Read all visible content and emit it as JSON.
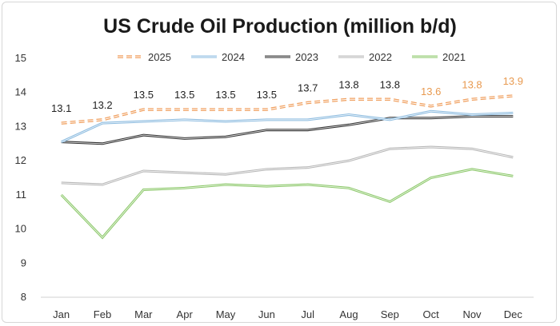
{
  "chart_data": {
    "type": "line",
    "title": "US Crude Oil Production (million b/d)",
    "xlabel": "",
    "ylabel": "",
    "categories": [
      "Jan",
      "Feb",
      "Mar",
      "Apr",
      "May",
      "Jun",
      "Jul",
      "Aug",
      "Sep",
      "Oct",
      "Nov",
      "Dec"
    ],
    "ylim": [
      8,
      15
    ],
    "yticks": [
      8,
      9,
      10,
      11,
      12,
      13,
      14,
      15
    ],
    "grid": false,
    "legend": "top",
    "series": [
      {
        "name": "2025",
        "color": "#f0a060",
        "style": "dashed",
        "values": [
          13.1,
          13.2,
          13.5,
          13.5,
          13.5,
          13.5,
          13.7,
          13.8,
          13.8,
          13.6,
          13.8,
          13.9
        ],
        "labels": [
          "13.1",
          "13.2",
          "13.5",
          "13.5",
          "13.5",
          "13.5",
          "13.7",
          "13.8",
          "13.8",
          "13.6",
          "13.8",
          "13.9"
        ],
        "label_colors": [
          "#222222",
          "#222222",
          "#222222",
          "#222222",
          "#222222",
          "#222222",
          "#222222",
          "#222222",
          "#222222",
          "#e89a50",
          "#e89a50",
          "#e89a50"
        ]
      },
      {
        "name": "2024",
        "color": "#8fbde0",
        "style": "solid",
        "values": [
          12.55,
          13.1,
          13.15,
          13.2,
          13.15,
          13.2,
          13.2,
          13.35,
          13.2,
          13.45,
          13.35,
          13.4
        ]
      },
      {
        "name": "2023",
        "color": "#333333",
        "style": "solid",
        "values": [
          12.55,
          12.5,
          12.75,
          12.65,
          12.7,
          12.9,
          12.9,
          13.05,
          13.25,
          13.25,
          13.3,
          13.3
        ]
      },
      {
        "name": "2022",
        "color": "#b8b8b8",
        "style": "solid",
        "values": [
          11.35,
          11.3,
          11.7,
          11.65,
          11.6,
          11.75,
          11.8,
          12.0,
          12.35,
          12.4,
          12.35,
          12.1
        ]
      },
      {
        "name": "2021",
        "color": "#8cc86a",
        "style": "solid",
        "values": [
          11.0,
          9.75,
          11.15,
          11.2,
          11.3,
          11.25,
          11.3,
          11.2,
          10.8,
          11.5,
          11.75,
          11.55
        ]
      }
    ]
  }
}
